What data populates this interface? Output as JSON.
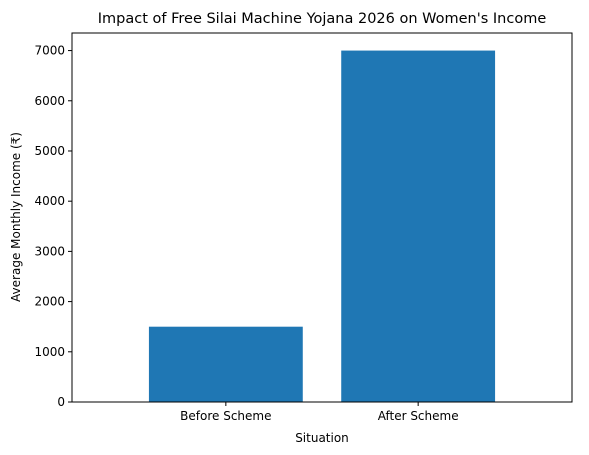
{
  "chart_data": {
    "type": "bar",
    "title": "Impact of Free Silai Machine Yojana 2026 on Women's Income",
    "xlabel": "Situation",
    "ylabel": "Average Monthly Income (₹)",
    "categories": [
      "Before Scheme",
      "After Scheme"
    ],
    "values": [
      1500,
      7000
    ],
    "ylim": [
      0,
      7350
    ],
    "yticks": [
      0,
      1000,
      2000,
      3000,
      4000,
      5000,
      6000,
      7000
    ],
    "bar_color": "#1f77b4",
    "grid": false,
    "legend": "none"
  }
}
